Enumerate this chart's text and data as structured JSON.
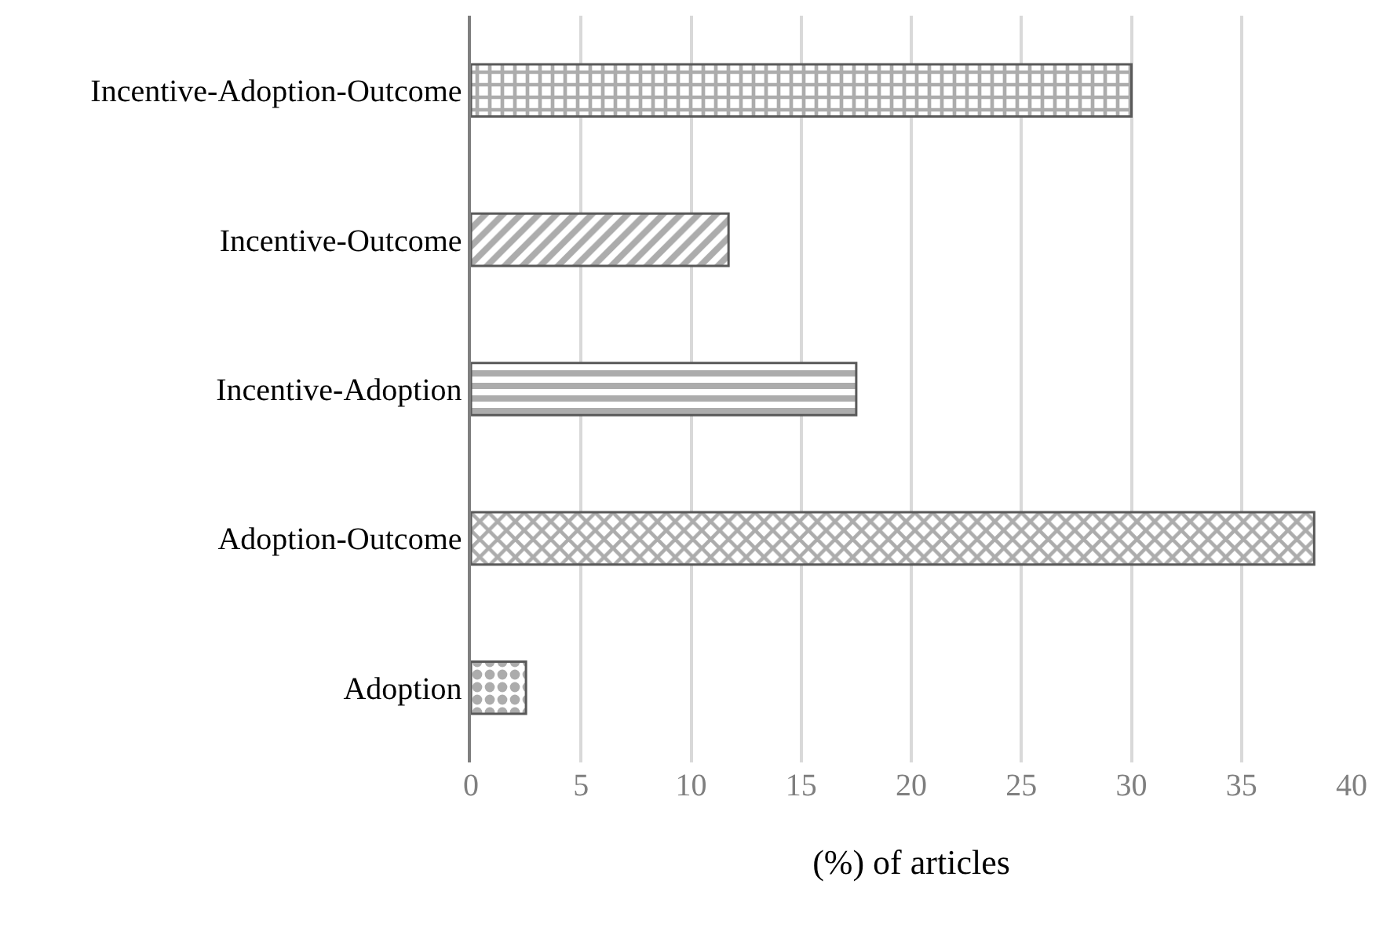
{
  "chart_data": {
    "type": "bar",
    "orientation": "horizontal",
    "xlabel": "(%) of articles",
    "categories": [
      "Incentive-Adoption-Outcome",
      "Incentive-Outcome",
      "Incentive-Adoption",
      "Adoption-Outcome",
      "Adoption"
    ],
    "values": [
      30,
      11.7,
      17.5,
      38.3,
      2.5
    ],
    "color": "#595959",
    "xlim": [
      0,
      40
    ],
    "xticks": [
      0,
      5,
      10,
      15,
      20,
      25,
      30,
      35,
      40
    ],
    "grid": "x"
  }
}
